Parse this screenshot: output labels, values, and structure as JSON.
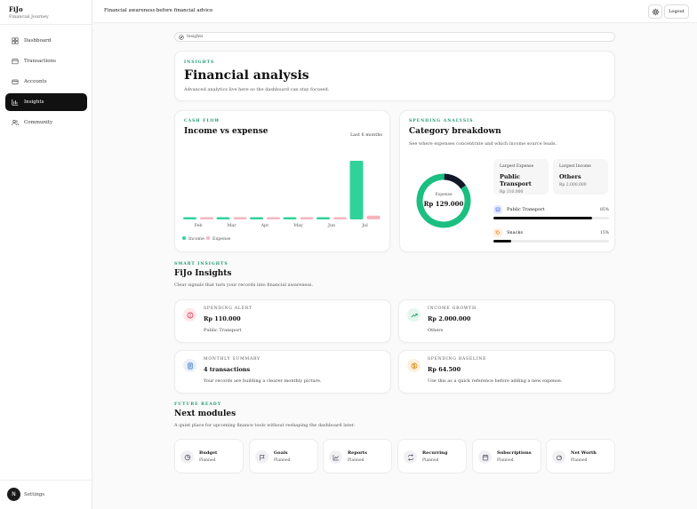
{
  "brand": {
    "name": "FiJo",
    "tagline": "Financial Journey"
  },
  "sidebar": {
    "items": [
      {
        "label": "Dashboard",
        "icon": "dashboard-icon",
        "active": false
      },
      {
        "label": "Transactions",
        "icon": "wallet-icon",
        "active": false
      },
      {
        "label": "Accounts",
        "icon": "card-icon",
        "active": false
      },
      {
        "label": "Insights",
        "icon": "bar-chart-icon",
        "active": true
      },
      {
        "label": "Community",
        "icon": "users-icon",
        "active": false
      }
    ],
    "footer": {
      "avatar_letter": "N",
      "settings_label": "Settings"
    }
  },
  "topbar": {
    "title": "Financial awareness before financial advice",
    "logout_label": "Logout"
  },
  "breadcrumb": {
    "label": "Insights"
  },
  "hero": {
    "eyebrow": "INSIGHTS",
    "title": "Financial analysis",
    "subtitle": "Advanced analytics live here so the dashboard can stay focused."
  },
  "cashflow": {
    "eyebrow": "CASH FLOW",
    "title": "Income vs expense",
    "period_label": "Last 6 months",
    "legend": {
      "income": "Income",
      "expense": "Expense"
    }
  },
  "chart_data": {
    "type": "bar",
    "categories": [
      "Feb",
      "Mar",
      "Apr",
      "May",
      "Jun",
      "Jul"
    ],
    "series": [
      {
        "name": "Income",
        "values": [
          0,
          0,
          0,
          0,
          0,
          2000000
        ],
        "color": "#2fd399"
      },
      {
        "name": "Expense",
        "values": [
          0,
          0,
          0,
          0,
          0,
          129000
        ],
        "color": "#f6b5bf"
      }
    ]
  },
  "spending": {
    "eyebrow": "SPENDING ANALYSIS",
    "title": "Category breakdown",
    "subtitle": "See where expenses concentrate and which income source leads.",
    "donut": {
      "label": "Expense",
      "value": "Rp 129.000",
      "segments": [
        {
          "name": "Public Transport",
          "percent": 85,
          "color": "#1bbf80"
        },
        {
          "name": "Snacks",
          "percent": 15,
          "color": "#111827"
        }
      ]
    },
    "largest_expense": {
      "label": "Largest Expense",
      "name": "Public Transport",
      "amount": "Rp 110.000"
    },
    "largest_income": {
      "label": "Largest Income",
      "name": "Others",
      "amount": "Rp 2.000.000"
    },
    "categories": [
      {
        "name": "Public Transport",
        "percent_label": "85%",
        "percent": 85,
        "icon": "bus-icon",
        "icon_bg": "#e6ecff",
        "icon_color": "#4a6cf7"
      },
      {
        "name": "Snacks",
        "percent_label": "15%",
        "percent": 15,
        "icon": "tag-icon",
        "icon_bg": "#fff0e0",
        "icon_color": "#f08a24"
      }
    ]
  },
  "smart": {
    "eyebrow": "SMART INSIGHTS",
    "title": "FiJo Insights",
    "subtitle": "Clear signals that turn your records into financial awareness.",
    "cards": [
      {
        "kicker": "SPENDING ALERT",
        "value": "Rp 110.000",
        "detail": "Public Transport",
        "icon": "alert-icon",
        "icon_bg": "#fde8ea",
        "icon_color": "#d9354d"
      },
      {
        "kicker": "INCOME GROWTH",
        "value": "Rp 2.000.000",
        "detail": "Others",
        "icon": "trending-up-icon",
        "icon_bg": "#e3f7ee",
        "icon_color": "#1a9a6a"
      },
      {
        "kicker": "MONTHLY SUMMARY",
        "value": "4 transactions",
        "detail": "Your records are building a clearer monthly picture.",
        "icon": "document-icon",
        "icon_bg": "#e8f0fb",
        "icon_color": "#3c74c6"
      },
      {
        "kicker": "SPENDING BASELINE",
        "value": "Rp 64.500",
        "detail": "Use this as a quick reference before adding a new expense.",
        "icon": "coin-icon",
        "icon_bg": "#fdf1dd",
        "icon_color": "#d98a12"
      }
    ]
  },
  "future": {
    "eyebrow": "FUTURE READY",
    "title": "Next modules",
    "subtitle": "A quiet place for upcoming finance tools without reshaping the dashboard later.",
    "modules": [
      {
        "name": "Budget",
        "status": "Planned",
        "icon": "budget-icon"
      },
      {
        "name": "Goals",
        "status": "Planned",
        "icon": "flag-icon"
      },
      {
        "name": "Reports",
        "status": "Planned",
        "icon": "line-chart-icon"
      },
      {
        "name": "Recurring",
        "status": "Planned",
        "icon": "repeat-icon"
      },
      {
        "name": "Subscriptions",
        "status": "Planned",
        "icon": "calendar-icon"
      },
      {
        "name": "Net Worth",
        "status": "Planned",
        "icon": "piggy-icon"
      }
    ]
  }
}
